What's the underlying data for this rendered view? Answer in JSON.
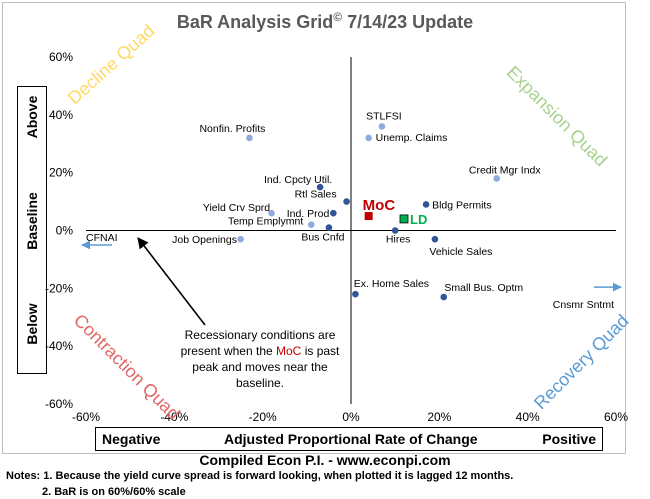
{
  "title": "BaR Analysis Grid",
  "title_symbol": "©",
  "title_suffix": " 7/14/23 Update",
  "y_box": {
    "top": "Above",
    "middle": "Baseline",
    "bottom": "Below"
  },
  "x_box": {
    "left": "Negative",
    "middle": "Adjusted Proportional Rate of Change",
    "right": "Positive"
  },
  "compiled": "Compiled Econ P.I. - www.econpi.com",
  "notes": [
    "Notes: 1. Because the yield curve spread is forward looking, when plotted it is lagged 12 months.",
    "2. BaR is on 60%/60% scale"
  ],
  "annotation": {
    "line1": "Recessionary conditions are",
    "line2a": "present when the ",
    "line2b": "MoC",
    "line2c": " is past",
    "line3": "peak and moves near the",
    "line4": "baseline."
  },
  "quadrants": {
    "decline": "Decline Quad",
    "expansion": "Expansion Quad",
    "contraction": "Contraction Quad",
    "recovery": "Recovery Quad"
  },
  "colors": {
    "decline": "#ffd966",
    "expansion": "#a9d18e",
    "contraction": "#e06666",
    "recovery": "#5b9bd5",
    "dark_point": "#2f5597",
    "light_point": "#8faadc",
    "moc": "#c00000",
    "ld": "#00b050",
    "arrow": "#5b9bd5"
  },
  "chart_data": {
    "type": "scatter",
    "xlim": [
      -60,
      60
    ],
    "ylim": [
      -60,
      60
    ],
    "x_ticks": [
      "-60%",
      "-40%",
      "-20%",
      "0%",
      "20%",
      "40%",
      "60%"
    ],
    "y_ticks": [
      "60%",
      "40%",
      "20%",
      "0%",
      "-20%",
      "-40%",
      "-60%"
    ],
    "grid": false,
    "points": [
      {
        "label": "STLFSI",
        "x": 7,
        "y": 36,
        "style": "light"
      },
      {
        "label": "Unemp. Claims",
        "x": 4,
        "y": 32,
        "style": "light"
      },
      {
        "label": "Nonfin. Profits",
        "x": -23,
        "y": 32,
        "style": "light"
      },
      {
        "label": "Credit Mgr Indx",
        "x": 33,
        "y": 18,
        "style": "light"
      },
      {
        "label": "Ind. Cpcty Util.",
        "x": -7,
        "y": 15,
        "style": "dark"
      },
      {
        "label": "Rtl Sales",
        "x": -1,
        "y": 10,
        "style": "dark"
      },
      {
        "label": "Bldg Permits",
        "x": 17,
        "y": 9,
        "style": "dark"
      },
      {
        "label": "Ind. Prod",
        "x": -4,
        "y": 6,
        "style": "dark"
      },
      {
        "label": "Yield Crv Sprd",
        "x": -18,
        "y": 6,
        "style": "light"
      },
      {
        "label": "Temp Emplymnt",
        "x": -9,
        "y": 2,
        "style": "light"
      },
      {
        "label": "Bus Cnfd",
        "x": -5,
        "y": 1,
        "style": "dark"
      },
      {
        "label": "Job Openings",
        "x": -25,
        "y": -3,
        "style": "light"
      },
      {
        "label": "Hires",
        "x": 10,
        "y": 0,
        "style": "dark"
      },
      {
        "label": "Vehicle Sales",
        "x": 19,
        "y": -3,
        "style": "dark"
      },
      {
        "label": "Ex. Home Sales",
        "x": 1,
        "y": -22,
        "style": "dark"
      },
      {
        "label": "Small Bus. Optm",
        "x": 21,
        "y": -23,
        "style": "dark"
      }
    ],
    "moc": {
      "label": "MoC",
      "x": 4,
      "y": 5
    },
    "ld": {
      "label": "LD",
      "x": 12,
      "y": 4
    },
    "offscale": [
      {
        "label": "CFNAI",
        "direction": "left",
        "y": -5
      },
      {
        "label": "Cnsmr Sntmt",
        "direction": "right",
        "y": -22
      }
    ]
  }
}
